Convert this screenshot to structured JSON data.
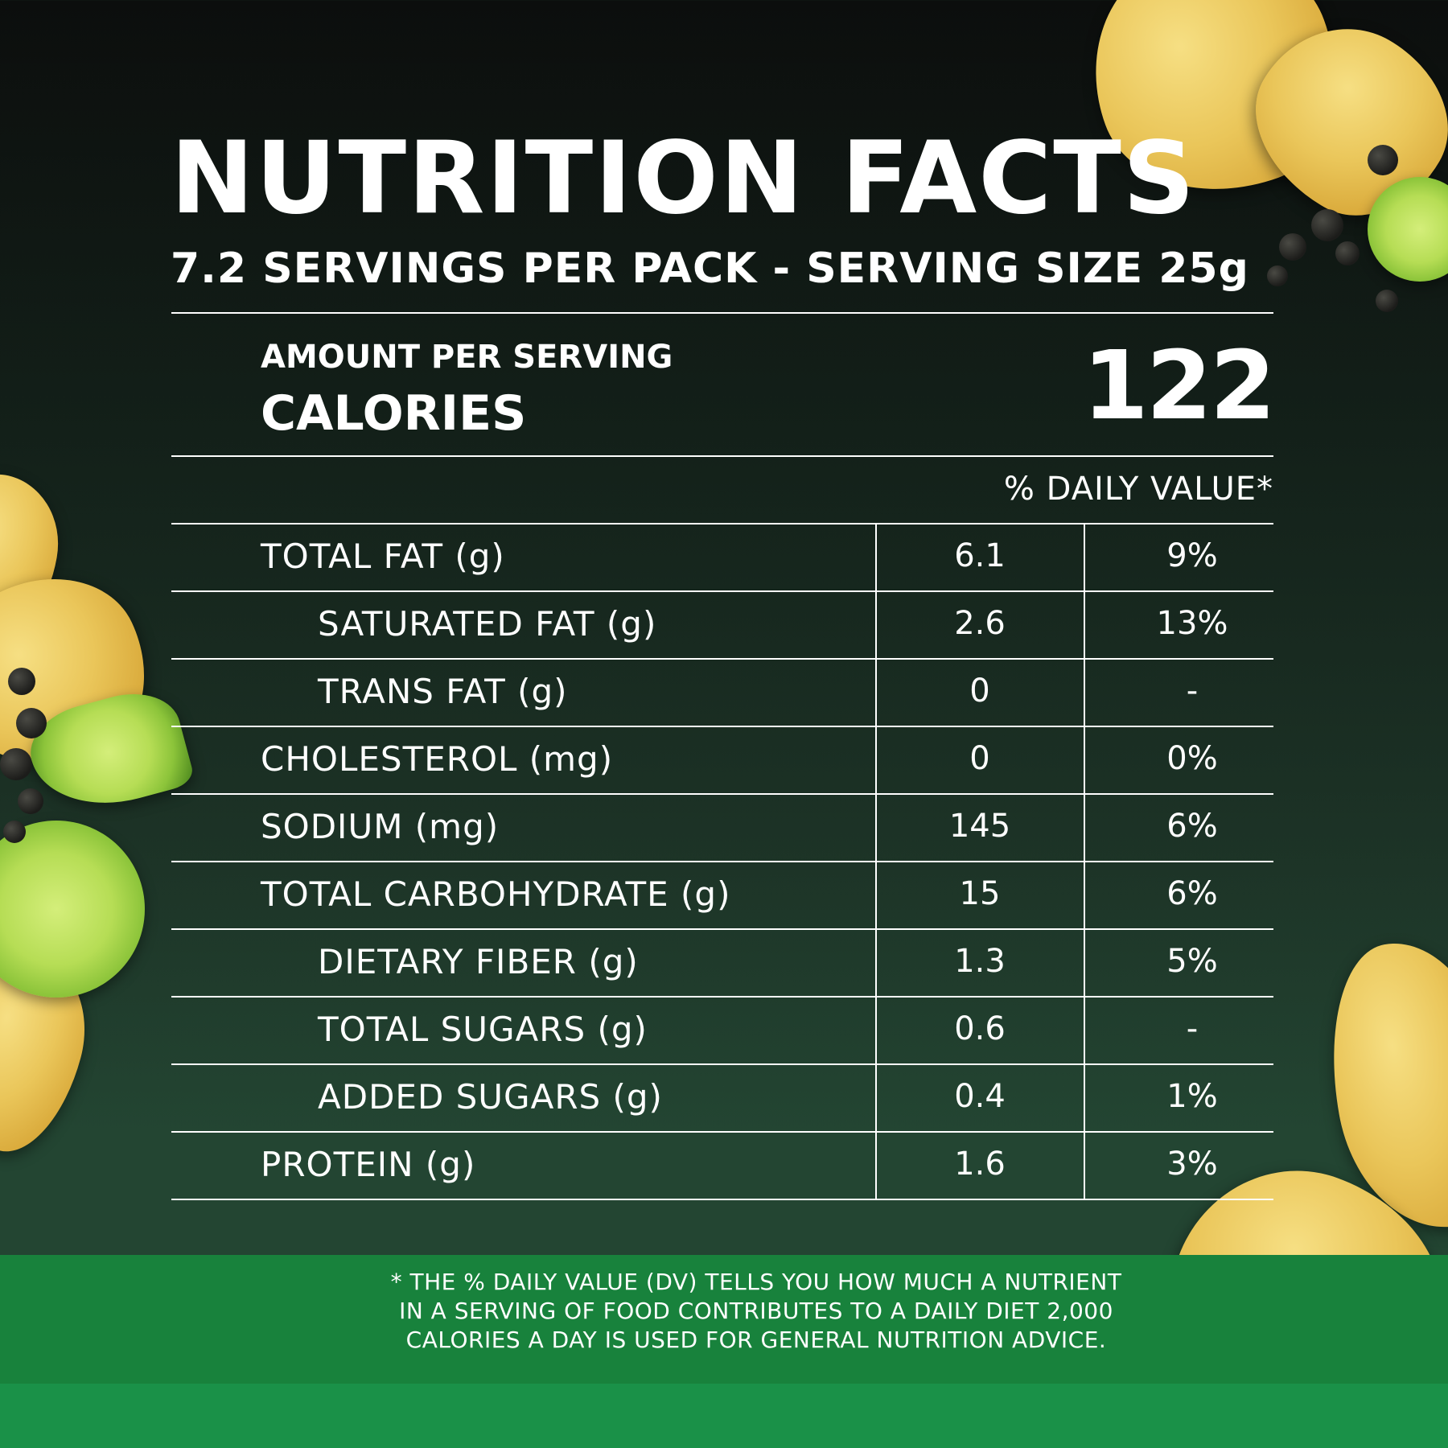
{
  "title": "NUTRITION FACTS",
  "servings_line": "7.2 SERVINGS PER PACK  - SERVING SIZE 25g",
  "amount_per_serving": "AMOUNT PER SERVING",
  "calories_label": "CALORIES",
  "calories_value": "122",
  "daily_value_header": "% DAILY VALUE*",
  "nutrients": [
    {
      "label": "TOTAL FAT (g)",
      "amount": "6.1",
      "dv": "9%",
      "indent": false
    },
    {
      "label": "SATURATED FAT (g)",
      "amount": "2.6",
      "dv": "13%",
      "indent": true
    },
    {
      "label": "TRANS FAT (g)",
      "amount": "0",
      "dv": "-",
      "indent": true
    },
    {
      "label": "CHOLESTEROL (mg)",
      "amount": "0",
      "dv": "0%",
      "indent": false
    },
    {
      "label": "SODIUM (mg)",
      "amount": "145",
      "dv": "6%",
      "indent": false
    },
    {
      "label": "TOTAL CARBOHYDRATE (g)",
      "amount": "15",
      "dv": "6%",
      "indent": false
    },
    {
      "label": "DIETARY FIBER (g)",
      "amount": "1.3",
      "dv": "5%",
      "indent": true
    },
    {
      "label": "TOTAL SUGARS (g)",
      "amount": "0.6",
      "dv": "-",
      "indent": true
    },
    {
      "label": "ADDED SUGARS (g)",
      "amount": "0.4",
      "dv": "1%",
      "indent": true
    },
    {
      "label": "PROTEIN (g)",
      "amount": "1.6",
      "dv": "3%",
      "indent": false
    }
  ],
  "footnote_lines": [
    "* THE % DAILY VALUE (DV) TELLS YOU HOW MUCH A NUTRIENT",
    "IN A SERVING OF FOOD CONTRIBUTES TO A DAILY DIET 2,000",
    "CALORIES A DAY IS USED FOR GENERAL NUTRITION ADVICE."
  ],
  "colors": {
    "background_top": "#0c0e0d",
    "background_bottom": "#234532",
    "footer_green": "#18823c",
    "text": "#ffffff"
  },
  "decorations": [
    "tortilla-chip",
    "lime-wedge",
    "black-pepper"
  ]
}
